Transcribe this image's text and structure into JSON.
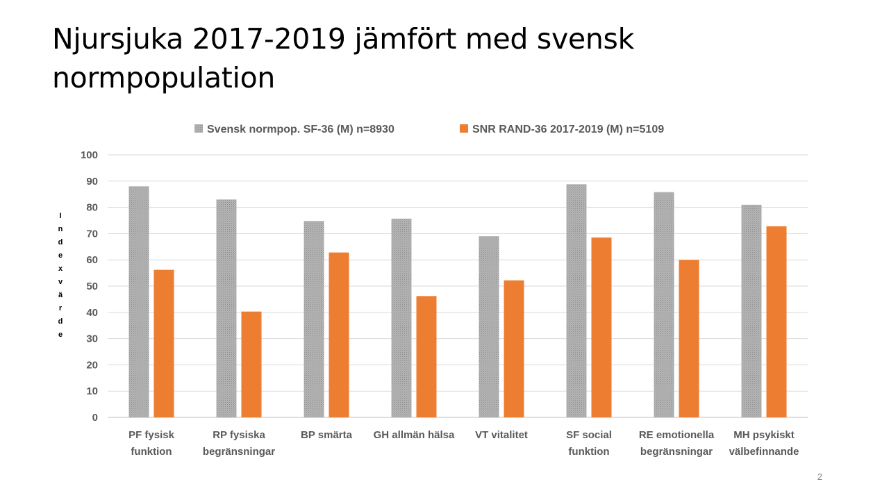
{
  "slide": {
    "title": "Njursjuka 2017-2019 jämfört med svensk normpopulation",
    "page_number": "2"
  },
  "chart_data": {
    "type": "bar",
    "title": "",
    "xlabel": "",
    "ylabel": "Indexvärde",
    "ylim": [
      0,
      100
    ],
    "yticks": [
      0,
      10,
      20,
      30,
      40,
      50,
      60,
      70,
      80,
      90,
      100
    ],
    "grid": true,
    "legend_position": "top",
    "categories": [
      [
        "PF fysisk",
        "funktion"
      ],
      [
        "RP fysiska",
        "begränsningar"
      ],
      [
        "BP smärta"
      ],
      [
        "GH allmän hälsa"
      ],
      [
        "VT vitalitet"
      ],
      [
        "SF social",
        "funktion"
      ],
      [
        "RE emotionella",
        "begränsningar"
      ],
      [
        "MH psykiskt",
        "välbefinnande"
      ]
    ],
    "series": [
      {
        "name": "Svensk normpop. SF-36 (M) n=8930",
        "color": "#a5a5a5",
        "pattern": "dotted",
        "values": [
          88,
          83,
          74.8,
          75.7,
          69,
          88.8,
          85.8,
          81
        ]
      },
      {
        "name": "SNR RAND-36 2017-2019 (M) n=5109",
        "color": "#ed7d31",
        "pattern": "solid",
        "values": [
          56.2,
          40.3,
          62.8,
          46.2,
          52.2,
          68.5,
          60,
          72.8
        ]
      }
    ]
  }
}
